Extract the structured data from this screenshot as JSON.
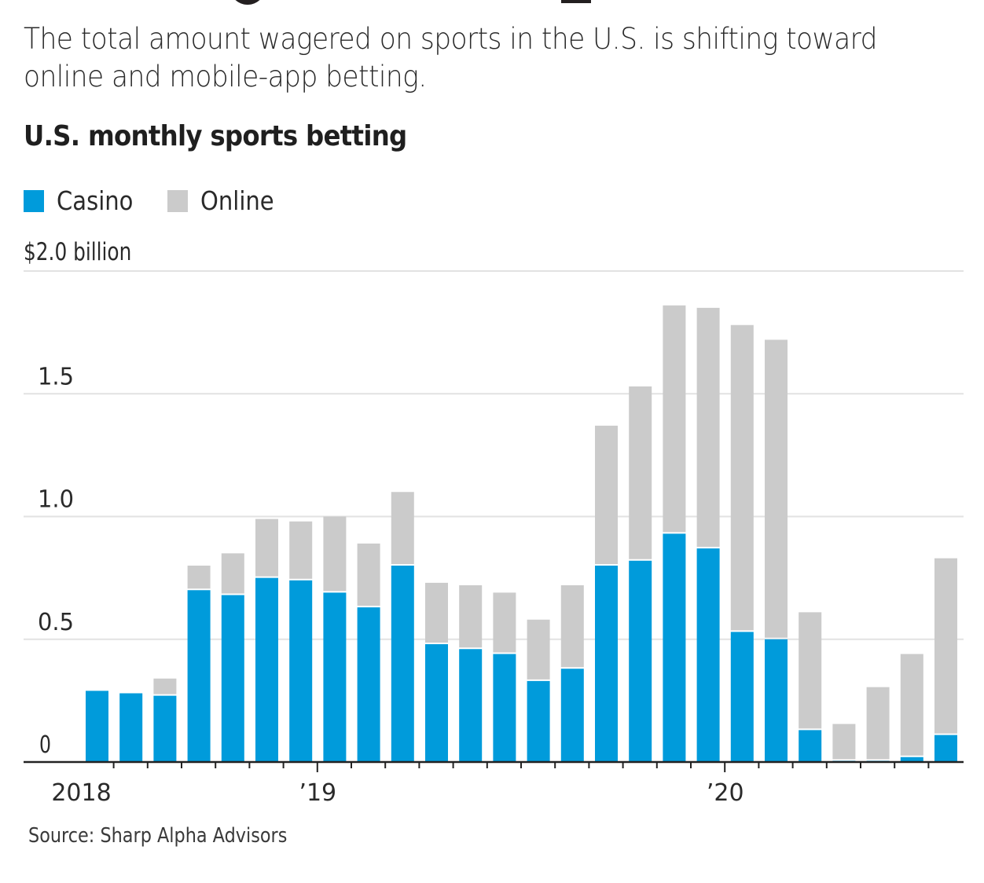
{
  "header": {
    "dek": "The total amount wagered on sports in the U.S. is shifting toward online and mobile-app betting."
  },
  "colors": {
    "casino": "#009bdb",
    "online": "#cbcbcb",
    "grid": "#e2e2e2",
    "axis": "#222222"
  },
  "chart_data": {
    "type": "bar",
    "stacked": true,
    "title": "U.S. monthly sports betting",
    "unit_label": "$2.0 billion",
    "xlabel": "",
    "ylabel": "",
    "ylim": [
      0,
      2.0
    ],
    "yticks": [
      {
        "value": 0,
        "label": "0"
      },
      {
        "value": 0.5,
        "label": "0.5"
      },
      {
        "value": 1.0,
        "label": "1.0"
      },
      {
        "value": 1.5,
        "label": "1.5"
      }
    ],
    "grid": true,
    "legend": {
      "position": "top-left",
      "entries": [
        {
          "name": "Casino",
          "color": "#009bdb"
        },
        {
          "name": "Online",
          "color": "#cbcbcb"
        }
      ]
    },
    "categories": [
      "2018-06",
      "2018-07",
      "2018-08",
      "2018-09",
      "2018-10",
      "2018-11",
      "2018-12",
      "2019-01",
      "2019-02",
      "2019-03",
      "2019-04",
      "2019-05",
      "2019-06",
      "2019-07",
      "2019-08",
      "2019-09",
      "2019-10",
      "2019-11",
      "2019-12",
      "2020-01",
      "2020-02",
      "2020-03",
      "2020-04",
      "2020-05",
      "2020-06",
      "2020-07"
    ],
    "xtick_labels": [
      {
        "category_index": 0,
        "label": "2018",
        "year_start": false
      },
      {
        "category_index": 7,
        "label": "’19",
        "year_start": true
      },
      {
        "category_index": 19,
        "label": "’20",
        "year_start": true
      }
    ],
    "series": [
      {
        "name": "Casino",
        "values": [
          0.29,
          0.28,
          0.27,
          0.7,
          0.68,
          0.75,
          0.74,
          0.69,
          0.63,
          0.8,
          0.48,
          0.46,
          0.44,
          0.33,
          0.38,
          0.8,
          0.82,
          0.93,
          0.87,
          0.53,
          0.5,
          0.13,
          0.005,
          0.005,
          0.02,
          0.11
        ]
      },
      {
        "name": "Online",
        "values": [
          0.0,
          0.0,
          0.07,
          0.1,
          0.17,
          0.24,
          0.24,
          0.31,
          0.26,
          0.3,
          0.25,
          0.26,
          0.25,
          0.25,
          0.34,
          0.57,
          0.71,
          0.93,
          0.98,
          1.25,
          1.22,
          0.48,
          0.15,
          0.3,
          0.42,
          0.72
        ]
      }
    ],
    "source": "Source: Sharp Alpha Advisors"
  }
}
